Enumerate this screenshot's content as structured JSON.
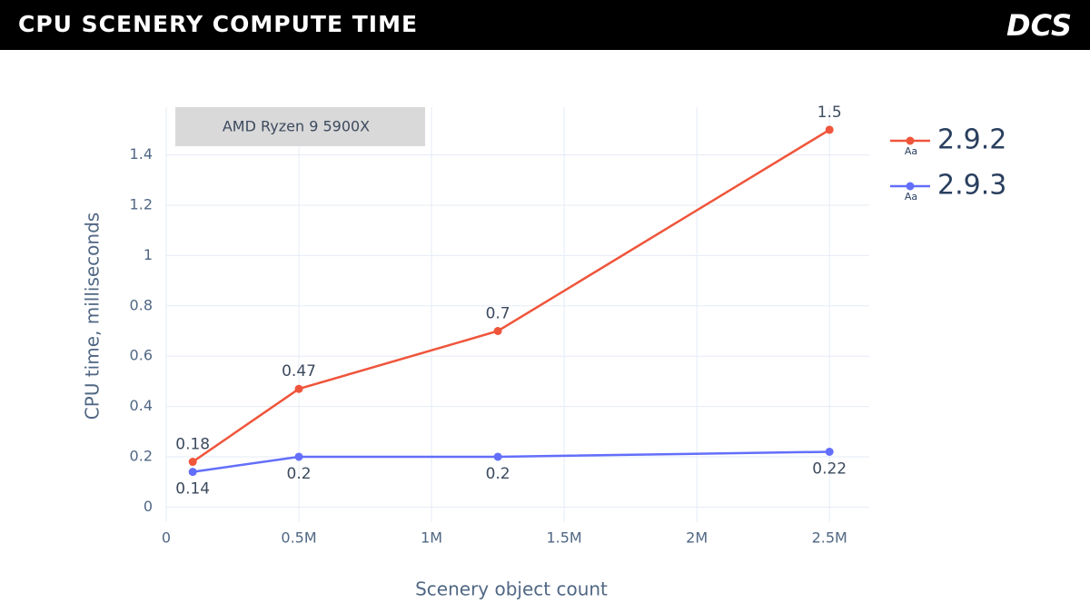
{
  "header": {
    "title": "CPU SCENERY COMPUTE TIME",
    "logo": "DCS"
  },
  "chart_data": {
    "type": "line",
    "annotation": "AMD Ryzen 9 5900X",
    "x_label": "Scenery object count",
    "y_label": "CPU time, milliseconds",
    "x": [
      100000,
      500000,
      1250000,
      2500000
    ],
    "series": [
      {
        "name": "2.9.2",
        "color": "#ef553b",
        "values": [
          0.18,
          0.47,
          0.7,
          1.5
        ],
        "textposition": "top"
      },
      {
        "name": "2.9.3",
        "color": "#636efa",
        "values": [
          0.14,
          0.2,
          0.2,
          0.22
        ],
        "textposition": "bottom"
      }
    ],
    "legend_symbol": "Aa",
    "xlim": [
      0,
      2650000
    ],
    "xticks": [
      0,
      {
        "value": 500000,
        "label": "0.5M"
      },
      {
        "value": 1000000,
        "label": "1M"
      },
      {
        "value": 1500000,
        "label": "1.5M"
      },
      {
        "value": 2000000,
        "label": "2M"
      },
      {
        "value": 2500000,
        "label": "2.5M"
      }
    ],
    "ylim": [
      -0.06,
      1.59
    ],
    "yticks": [
      0,
      0.2,
      0.4,
      0.6,
      0.8,
      1,
      1.2,
      1.4
    ],
    "grid": true,
    "legend": "right"
  }
}
